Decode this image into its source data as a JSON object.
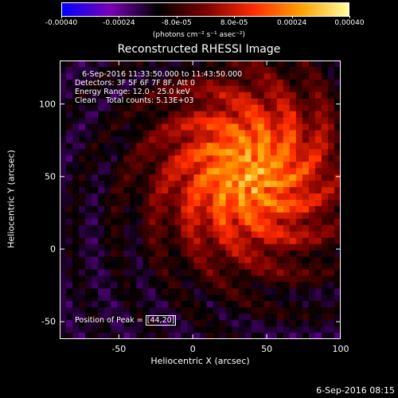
{
  "colorbar": {
    "ticks": [
      "-0.00040",
      "-0.00024",
      "-8.0e-05",
      "8.0e-05",
      "0.00024",
      "0.00040"
    ],
    "units": "(photons cm⁻² s⁻¹ asec⁻²)",
    "colormap": [
      "#0000ff",
      "#7a00b8",
      "#000000",
      "#7a0000",
      "#ff2a00",
      "#ffa000",
      "#ffffa0"
    ]
  },
  "title": "Reconstructed RHESSI Image",
  "annotations": {
    "time": "6-Sep-2016 11:33:50.000 to 11:43:50.000",
    "detectors": "Detectors: 3F 5F 6F 7F 8F, Att 0",
    "energy": "Energy Range: 12.0 - 25.0 keV",
    "method": "Clean    Total counts: 5.13E+03"
  },
  "peak": {
    "label": "Position of Peak = ",
    "value": "[44,20]"
  },
  "axes": {
    "xlabel": "Heliocentric X (arcsec)",
    "ylabel": "Heliocentric Y (arcsec)",
    "xticks": [
      "-50",
      "0",
      "50",
      "100"
    ],
    "yticks": [
      "100",
      "50",
      "0",
      "-50"
    ],
    "xlim": [
      -90,
      100
    ],
    "ylim": [
      -62,
      130
    ]
  },
  "timestamp": "6-Sep-2016 08:15"
}
